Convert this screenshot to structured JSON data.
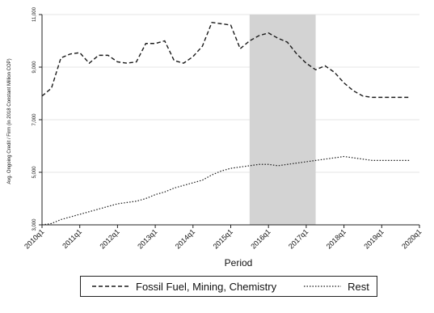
{
  "chart_data": {
    "type": "line",
    "xlabel": "Period",
    "ylabel": "Avg. Ongoing Credit / Firm (in 2018 Constant Million COP)",
    "x": [
      "2010q1",
      "2010q3",
      "2011q1",
      "2011q3",
      "2012q1",
      "2012q3",
      "2013q1",
      "2013q3",
      "2014q1",
      "2014q3",
      "2015q1",
      "2015q3",
      "2016q1",
      "2016q3",
      "2017q1",
      "2017q3",
      "2018q1",
      "2018q3",
      "2019q1",
      "2019q3",
      "2020q1"
    ],
    "x_start": "2010q1",
    "x_end": "2020q1",
    "xticks": [
      "2010q1",
      "2011q1",
      "2012q1",
      "2013q1",
      "2014q1",
      "2015q1",
      "2016q1",
      "2017q1",
      "2018q1",
      "2019q1",
      "2020q1"
    ],
    "ylim": [
      3000,
      11000
    ],
    "yticks": [
      3000,
      5000,
      7000,
      9000,
      11000
    ],
    "ytick_labels": [
      "3,000",
      "5,000",
      "7,000",
      "9,000",
      "11,000"
    ],
    "shaded_region": [
      "2015q3",
      "2017q2"
    ],
    "series": [
      {
        "name": "Fossil Fuel, Mining, Chemistry",
        "style": "dashed",
        "points": [
          [
            "2010q1",
            7900
          ],
          [
            "2010q2",
            8200
          ],
          [
            "2010q3",
            9350
          ],
          [
            "2010q4",
            9500
          ],
          [
            "2011q1",
            9550
          ],
          [
            "2011q2",
            9150
          ],
          [
            "2011q3",
            9450
          ],
          [
            "2011q4",
            9450
          ],
          [
            "2012q1",
            9200
          ],
          [
            "2012q2",
            9150
          ],
          [
            "2012q3",
            9200
          ],
          [
            "2012q4",
            9900
          ],
          [
            "2013q1",
            9900
          ],
          [
            "2013q2",
            10000
          ],
          [
            "2013q3",
            9250
          ],
          [
            "2013q4",
            9150
          ],
          [
            "2014q1",
            9400
          ],
          [
            "2014q2",
            9800
          ],
          [
            "2014q3",
            10700
          ],
          [
            "2014q4",
            10650
          ],
          [
            "2015q1",
            10600
          ],
          [
            "2015q2",
            9700
          ],
          [
            "2015q3",
            10000
          ],
          [
            "2015q4",
            10200
          ],
          [
            "2016q1",
            10300
          ],
          [
            "2016q2",
            10100
          ],
          [
            "2016q3",
            9950
          ],
          [
            "2016q4",
            9500
          ],
          [
            "2017q1",
            9150
          ],
          [
            "2017q2",
            8900
          ],
          [
            "2017q3",
            9050
          ],
          [
            "2017q4",
            8800
          ],
          [
            "2018q1",
            8400
          ],
          [
            "2018q2",
            8100
          ],
          [
            "2018q3",
            7900
          ],
          [
            "2018q4",
            7850
          ],
          [
            "2019q1",
            7850
          ],
          [
            "2019q2",
            7850
          ],
          [
            "2019q3",
            7850
          ],
          [
            "2019q4",
            7850
          ]
        ]
      },
      {
        "name": "Rest",
        "style": "dotted",
        "points": [
          [
            "2010q1",
            3000
          ],
          [
            "2010q2",
            3050
          ],
          [
            "2010q3",
            3200
          ],
          [
            "2010q4",
            3300
          ],
          [
            "2011q1",
            3400
          ],
          [
            "2011q2",
            3500
          ],
          [
            "2011q3",
            3600
          ],
          [
            "2011q4",
            3700
          ],
          [
            "2012q1",
            3800
          ],
          [
            "2012q2",
            3850
          ],
          [
            "2012q3",
            3900
          ],
          [
            "2012q4",
            4000
          ],
          [
            "2013q1",
            4150
          ],
          [
            "2013q2",
            4250
          ],
          [
            "2013q3",
            4400
          ],
          [
            "2013q4",
            4500
          ],
          [
            "2014q1",
            4600
          ],
          [
            "2014q2",
            4700
          ],
          [
            "2014q3",
            4900
          ],
          [
            "2014q4",
            5050
          ],
          [
            "2015q1",
            5150
          ],
          [
            "2015q2",
            5200
          ],
          [
            "2015q3",
            5250
          ],
          [
            "2015q4",
            5300
          ],
          [
            "2016q1",
            5300
          ],
          [
            "2016q2",
            5250
          ],
          [
            "2016q3",
            5300
          ],
          [
            "2016q4",
            5350
          ],
          [
            "2017q1",
            5400
          ],
          [
            "2017q2",
            5450
          ],
          [
            "2017q3",
            5500
          ],
          [
            "2017q4",
            5550
          ],
          [
            "2018q1",
            5600
          ],
          [
            "2018q2",
            5550
          ],
          [
            "2018q3",
            5500
          ],
          [
            "2018q4",
            5450
          ],
          [
            "2019q1",
            5450
          ],
          [
            "2019q2",
            5450
          ],
          [
            "2019q3",
            5450
          ],
          [
            "2019q4",
            5450
          ]
        ]
      }
    ],
    "grid": true,
    "legend_position": "bottom",
    "colors": {
      "line": "#1a1a1a",
      "shade": "#d3d3d3",
      "grid": "#e5e5e5"
    }
  }
}
